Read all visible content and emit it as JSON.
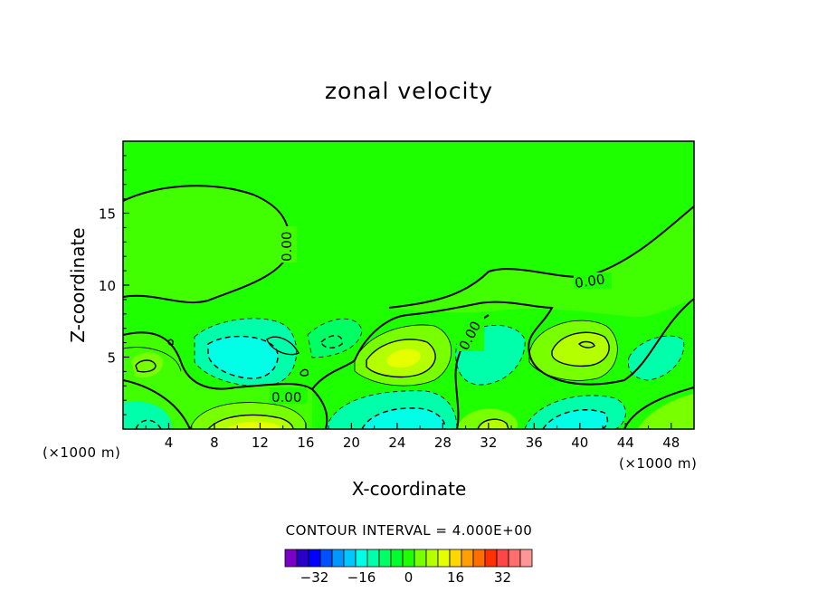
{
  "chart_data": {
    "type": "heatmap",
    "title": "zonal velocity",
    "xlabel": "X-coordinate",
    "ylabel": "Z-coordinate",
    "x_unit": "(×1000 m)",
    "y_unit": "(×1000 m)",
    "xlim": [
      0,
      50
    ],
    "ylim": [
      0,
      20
    ],
    "x_ticks": [
      4,
      8,
      12,
      16,
      20,
      24,
      28,
      32,
      36,
      40,
      44,
      48
    ],
    "y_ticks": [
      5,
      10,
      15
    ],
    "contour_interval_text": "CONTOUR INTERVAL = 4.000E+00",
    "contour_labels": [
      "0.00",
      "0.00",
      "0.00",
      "0.00"
    ],
    "colorbar": {
      "colors": [
        "#7a00c8",
        "#2800c8",
        "#0000ff",
        "#0050ff",
        "#0096ff",
        "#00c8ff",
        "#00ffe6",
        "#00ffaa",
        "#00ff64",
        "#00ff2e",
        "#1eff00",
        "#78ff00",
        "#b4ff00",
        "#e6ff00",
        "#ffd700",
        "#ffa000",
        "#ff6e00",
        "#ff3200",
        "#ff4646",
        "#ff6e6e",
        "#ff9696"
      ],
      "tick_labels": [
        "-32",
        "-16",
        "0",
        "16",
        "32"
      ],
      "tick_values": [
        -32,
        -16,
        0,
        16,
        32
      ]
    }
  }
}
